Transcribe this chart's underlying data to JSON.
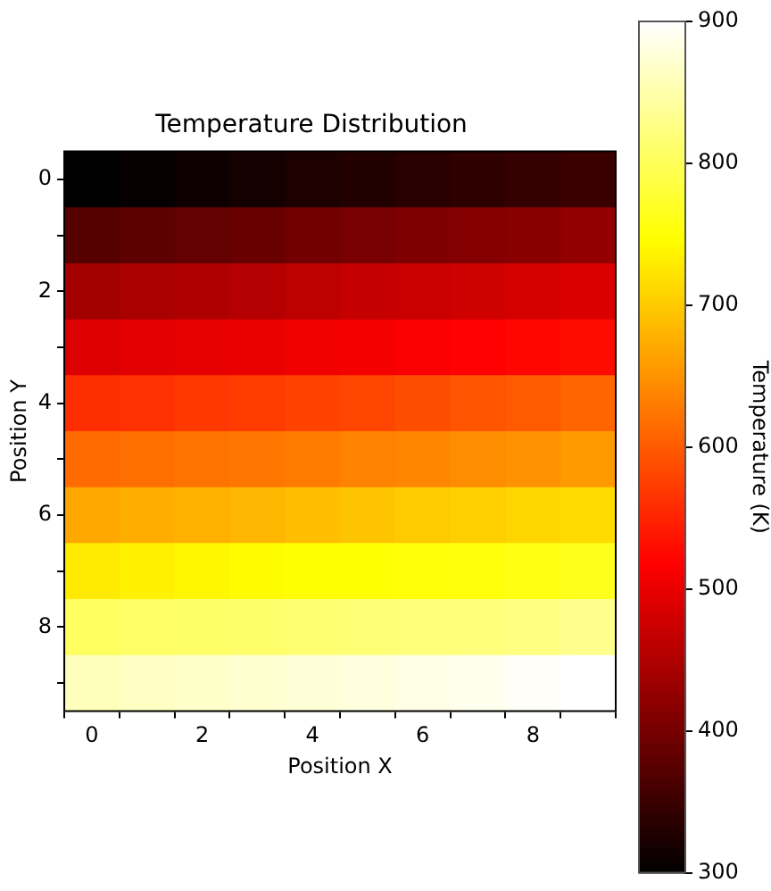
{
  "chart_data": {
    "type": "heatmap",
    "title": "Temperature Distribution",
    "xlabel": "Position X",
    "ylabel": "Position Y",
    "clabel": "Temperature (K)",
    "categories": [
      "0",
      null,
      "2",
      null,
      "4",
      null,
      "6",
      null,
      "8",
      null
    ],
    "y_categories": [
      "0",
      null,
      "2",
      null,
      "4",
      null,
      "6",
      null,
      "8",
      null
    ],
    "cells": [
      [
        300,
        305,
        312,
        318,
        325,
        330,
        335,
        340,
        345,
        350
      ],
      [
        375,
        380,
        385,
        390,
        398,
        403,
        408,
        413,
        418,
        425
      ],
      [
        440,
        445,
        450,
        455,
        462,
        468,
        472,
        478,
        482,
        488
      ],
      [
        490,
        495,
        498,
        502,
        506,
        510,
        515,
        520,
        525,
        530
      ],
      [
        560,
        563,
        568,
        572,
        578,
        582,
        588,
        594,
        600,
        610
      ],
      [
        615,
        618,
        622,
        626,
        630,
        636,
        640,
        645,
        650,
        658
      ],
      [
        670,
        675,
        678,
        682,
        690,
        695,
        700,
        705,
        710,
        715
      ],
      [
        730,
        735,
        740,
        745,
        750,
        750,
        752,
        755,
        758,
        765
      ],
      [
        805,
        808,
        810,
        812,
        815,
        818,
        820,
        822,
        825,
        832
      ],
      [
        860,
        865,
        868,
        872,
        876,
        880,
        885,
        890,
        895,
        900
      ]
    ],
    "clim": [
      300,
      900
    ],
    "cticks": [
      300,
      400,
      500,
      600,
      700,
      800,
      900
    ]
  }
}
